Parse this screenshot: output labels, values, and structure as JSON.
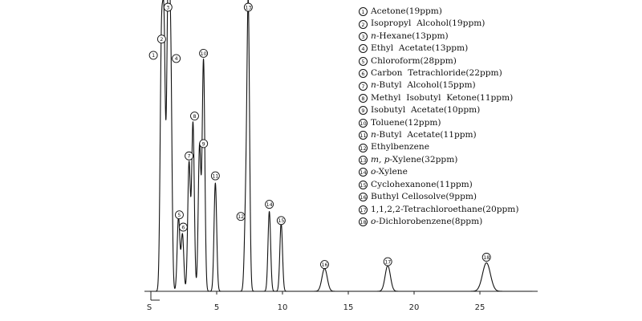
{
  "chart_data": {
    "type": "line",
    "title": "",
    "xlabel": "",
    "ylabel": "",
    "x_ticks": [
      "S",
      "5",
      "10",
      "15",
      "20",
      "25"
    ],
    "x_tick_values": [
      0,
      5,
      10,
      15,
      20,
      25
    ],
    "xlim": [
      0,
      29
    ],
    "ylim": [
      0,
      100
    ],
    "grid": false,
    "legend_position": "top-right",
    "peaks": [
      {
        "id": 1,
        "marker": "①",
        "name": "Acetone (19ppm)",
        "retention": 0.8,
        "height": 82,
        "width": 0.1
      },
      {
        "id": 2,
        "marker": "②",
        "name": "Isopropyl Alcohol (19ppm)",
        "retention": 1.0,
        "height": 86,
        "width": 0.1
      },
      {
        "id": 3,
        "marker": "③",
        "name": "n-Hexane (13ppm)",
        "retention": 1.3,
        "height": 99,
        "width": 0.1
      },
      {
        "id": 4,
        "marker": "④",
        "name": "Ethyl Acetate (13ppm)",
        "retention": 1.5,
        "height": 82,
        "width": 0.1
      },
      {
        "id": 5,
        "marker": "⑤",
        "name": "Chloroform (28ppm)",
        "retention": 2.1,
        "height": 26,
        "width": 0.1
      },
      {
        "id": 6,
        "marker": "⑥",
        "name": "Carbon Tetrachloride (22ppm)",
        "retention": 2.4,
        "height": 20,
        "width": 0.1
      },
      {
        "id": 7,
        "marker": "⑦",
        "name": "n-Butyl Alcohol (15ppm)",
        "retention": 2.9,
        "height": 45,
        "width": 0.1
      },
      {
        "id": 8,
        "marker": "⑧",
        "name": "Methyl Isobutyl Ketone (11ppm)",
        "retention": 3.2,
        "height": 59,
        "width": 0.1
      },
      {
        "id": 9,
        "marker": "⑨",
        "name": "Isobutyl Acetate (10ppm)",
        "retention": 3.7,
        "height": 51,
        "width": 0.1
      },
      {
        "id": 10,
        "marker": "⑩",
        "name": "Toluene (12ppm)",
        "retention": 4.0,
        "height": 81,
        "width": 0.1
      },
      {
        "id": 11,
        "marker": "⑪",
        "name": "n-Butyl Acetate (11ppm)",
        "retention": 4.9,
        "height": 38,
        "width": 0.1
      },
      {
        "id": 12,
        "marker": "⑫",
        "name": "Ethylbenzene",
        "retention": 7.2,
        "height": 26,
        "width": 0.1
      },
      {
        "id": 13,
        "marker": "⑬",
        "name": "m, p-Xylene (32ppm)",
        "retention": 7.4,
        "height": 99,
        "width": 0.1
      },
      {
        "id": 14,
        "marker": "⑭",
        "name": "o-Xylene",
        "retention": 9.0,
        "height": 28,
        "width": 0.1
      },
      {
        "id": 15,
        "marker": "⑮",
        "name": "Cyclohexanone (11ppm)",
        "retention": 9.9,
        "height": 24,
        "width": 0.1
      },
      {
        "id": 16,
        "marker": "⑯",
        "name": "Buthyl Cellosolve (9ppm)",
        "retention": 13.2,
        "height": 8,
        "width": 0.2
      },
      {
        "id": 17,
        "marker": "⑰",
        "name": "1,1,2,2-Tetrachloroethane (20ppm)",
        "retention": 18.0,
        "height": 9,
        "width": 0.2
      },
      {
        "id": 18,
        "marker": "⑱",
        "name": "o-Dichlorobenzene (8ppm)",
        "retention": 25.5,
        "height": 10,
        "width": 0.3
      }
    ]
  },
  "legend": {
    "items": [
      {
        "marker": "①",
        "pre": "",
        "it": "",
        "post": "Acetone(19ppm)"
      },
      {
        "marker": "②",
        "pre": "",
        "it": "",
        "post": "Isopropyl  Alcohol(19ppm)"
      },
      {
        "marker": "③",
        "pre": "",
        "it": "n",
        "post": "-Hexane(13ppm)"
      },
      {
        "marker": "④",
        "pre": "",
        "it": "",
        "post": "Ethyl  Acetate(13ppm)"
      },
      {
        "marker": "⑤",
        "pre": "",
        "it": "",
        "post": "Chloroform(28ppm)"
      },
      {
        "marker": "⑥",
        "pre": "",
        "it": "",
        "post": "Carbon  Tetrachloride(22ppm)"
      },
      {
        "marker": "⑦",
        "pre": "",
        "it": "n",
        "post": "-Butyl  Alcohol(15ppm)"
      },
      {
        "marker": "⑧",
        "pre": "",
        "it": "",
        "post": "Methyl  Isobutyl  Ketone(11ppm)"
      },
      {
        "marker": "⑨",
        "pre": "",
        "it": "",
        "post": "Isobutyl  Acetate(10ppm)"
      },
      {
        "marker": "⑩",
        "pre": "",
        "it": "",
        "post": "Toluene(12ppm)"
      },
      {
        "marker": "⑪",
        "pre": "",
        "it": "n",
        "post": "-Butyl  Acetate(11ppm)"
      },
      {
        "marker": "⑫",
        "pre": "",
        "it": "",
        "post": "Ethylbenzene"
      },
      {
        "marker": "⑬",
        "pre": "",
        "it": "m, p",
        "post": "-Xylene(32ppm)"
      },
      {
        "marker": "⑭",
        "pre": "",
        "it": "o",
        "post": "-Xylene"
      },
      {
        "marker": "⑮",
        "pre": "",
        "it": "",
        "post": "Cyclohexanone(11ppm)"
      },
      {
        "marker": "⑯",
        "pre": "",
        "it": "",
        "post": "Buthyl Cellosolve(9ppm)"
      },
      {
        "marker": "⑰",
        "pre": "",
        "it": "",
        "post": "1,1,2,2-Tetrachloroethane(20ppm)"
      },
      {
        "marker": "⑱",
        "pre": "",
        "it": "o",
        "post": "-Dichlorobenzene(8ppm)"
      }
    ]
  },
  "colors": {
    "trace": "#111111",
    "axis": "#222222",
    "background": "#ffffff"
  }
}
